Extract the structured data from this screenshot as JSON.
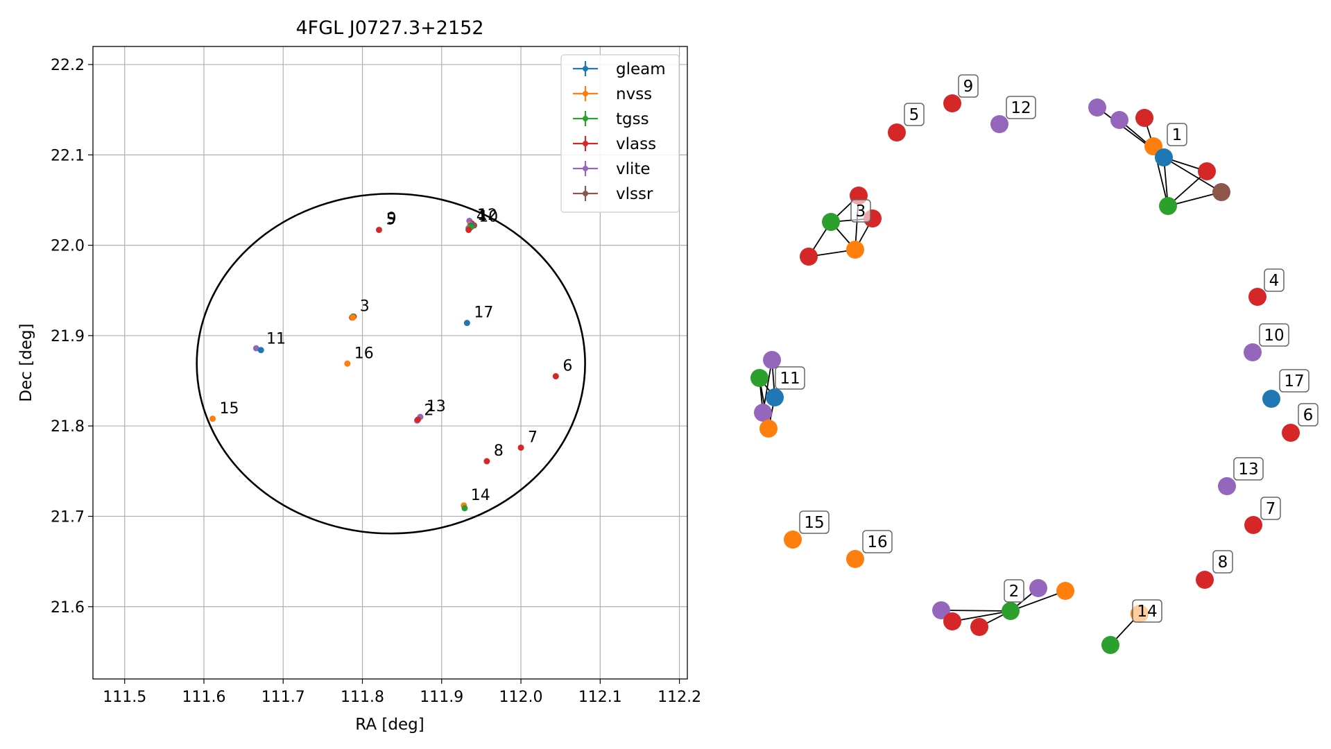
{
  "colors": {
    "gleam": "#1f77b4",
    "nvss": "#ff7f0e",
    "tgss": "#2ca02c",
    "vlass": "#d62728",
    "vlite": "#9467bd",
    "vlssr": "#8c564b"
  },
  "chart_data": [
    {
      "type": "scatter",
      "title": "4FGL J0727.3+2152",
      "xlabel": "RA [deg]",
      "ylabel": "Dec [deg]",
      "xlim": [
        111.46,
        112.21
      ],
      "ylim": [
        21.52,
        22.22
      ],
      "x_ticks": [
        111.5,
        111.6,
        111.7,
        111.8,
        111.9,
        112.0,
        112.1,
        112.2
      ],
      "y_ticks": [
        21.6,
        21.7,
        21.8,
        21.9,
        22.0,
        22.1,
        22.2
      ],
      "grid": true,
      "legend": {
        "placement": "top-right",
        "entries": [
          "gleam",
          "nvss",
          "tgss",
          "vlass",
          "vlite",
          "vlssr"
        ]
      },
      "ellipse": {
        "center": [
          111.836,
          21.869
        ],
        "ra_semi_axis": 0.245,
        "dec_semi_axis": 0.188
      },
      "points": [
        {
          "survey": "vlite",
          "ra": 111.935,
          "dec": 22.027
        },
        {
          "survey": "vlass",
          "ra": 111.938,
          "dec": 22.024
        },
        {
          "survey": "vlssr",
          "ra": 111.941,
          "dec": 22.022
        },
        {
          "survey": "vlite",
          "ra": 111.934,
          "dec": 22.019
        },
        {
          "survey": "vlite",
          "ra": 111.936,
          "dec": 22.021
        },
        {
          "survey": "nvss",
          "ra": 111.936,
          "dec": 22.023
        },
        {
          "survey": "gleam",
          "ra": 111.937,
          "dec": 22.022
        },
        {
          "survey": "tgss",
          "ra": 111.937,
          "dec": 22.02
        },
        {
          "survey": "vlass",
          "ra": 111.934,
          "dec": 22.017
        },
        {
          "survey": "vlass",
          "ra": 111.821,
          "dec": 22.017
        },
        {
          "survey": "vlass",
          "ra": 111.787,
          "dec": 21.92
        },
        {
          "survey": "vlass",
          "ra": 111.789,
          "dec": 21.921
        },
        {
          "survey": "tgss",
          "ra": 111.788,
          "dec": 21.921
        },
        {
          "survey": "nvss",
          "ra": 111.788,
          "dec": 21.92
        },
        {
          "survey": "gleam",
          "ra": 111.932,
          "dec": 21.914
        },
        {
          "survey": "vlite",
          "ra": 111.666,
          "dec": 21.886
        },
        {
          "survey": "gleam",
          "ra": 111.672,
          "dec": 21.884
        },
        {
          "survey": "nvss",
          "ra": 111.781,
          "dec": 21.869
        },
        {
          "survey": "vlass",
          "ra": 112.044,
          "dec": 21.855
        },
        {
          "survey": "nvss",
          "ra": 111.611,
          "dec": 21.808
        },
        {
          "survey": "vlite",
          "ra": 111.873,
          "dec": 21.81
        },
        {
          "survey": "vlite",
          "ra": 111.869,
          "dec": 21.806
        },
        {
          "survey": "vlass",
          "ra": 111.87,
          "dec": 21.807
        },
        {
          "survey": "vlass",
          "ra": 112.0,
          "dec": 21.776
        },
        {
          "survey": "vlass",
          "ra": 111.957,
          "dec": 21.761
        },
        {
          "survey": "nvss",
          "ra": 111.928,
          "dec": 21.712
        },
        {
          "survey": "tgss",
          "ra": 111.929,
          "dec": 21.709
        }
      ],
      "annotations": [
        {
          "text": "5",
          "ra": 111.821,
          "dec": 22.017
        },
        {
          "text": "9",
          "ra": 111.822,
          "dec": 22.018
        },
        {
          "text": "1",
          "ra": 111.936,
          "dec": 22.022
        },
        {
          "text": "4",
          "ra": 111.935,
          "dec": 22.021
        },
        {
          "text": "12",
          "ra": 111.937,
          "dec": 22.022
        },
        {
          "text": "10",
          "ra": 111.938,
          "dec": 22.02
        },
        {
          "text": "3",
          "ra": 111.788,
          "dec": 21.921
        },
        {
          "text": "17",
          "ra": 111.932,
          "dec": 21.914
        },
        {
          "text": "11",
          "ra": 111.67,
          "dec": 21.885
        },
        {
          "text": "16",
          "ra": 111.781,
          "dec": 21.869
        },
        {
          "text": "6",
          "ra": 112.044,
          "dec": 21.855
        },
        {
          "text": "15",
          "ra": 111.611,
          "dec": 21.808
        },
        {
          "text": "2",
          "ra": 111.869,
          "dec": 21.806
        },
        {
          "text": "13",
          "ra": 111.872,
          "dec": 21.81
        },
        {
          "text": "7",
          "ra": 112.0,
          "dec": 21.776
        },
        {
          "text": "8",
          "ra": 111.957,
          "dec": 21.761
        },
        {
          "text": "14",
          "ra": 111.928,
          "dec": 21.712
        }
      ]
    },
    {
      "type": "network",
      "groups": [
        {
          "label": "1",
          "nodes": [
            "vlite",
            "vlite",
            "vlass",
            "nvss",
            "gleam",
            "vlass",
            "tgss",
            "vlssr"
          ]
        },
        {
          "label": "3",
          "nodes": [
            "vlass",
            "tgss",
            "vlass",
            "nvss",
            "vlass"
          ]
        },
        {
          "label": "11",
          "nodes": [
            "vlite",
            "tgss",
            "gleam",
            "vlite",
            "nvss"
          ]
        },
        {
          "label": "2",
          "nodes": [
            "vlite",
            "vlass",
            "vlass",
            "tgss",
            "vlite",
            "nvss"
          ]
        },
        {
          "label": "14",
          "nodes": [
            "tgss",
            "nvss"
          ]
        },
        {
          "label": "5",
          "nodes": [
            "vlass"
          ]
        },
        {
          "label": "9",
          "nodes": [
            "vlass"
          ]
        },
        {
          "label": "12",
          "nodes": [
            "vlite"
          ]
        },
        {
          "label": "4",
          "nodes": [
            "vlass"
          ]
        },
        {
          "label": "10",
          "nodes": [
            "vlite"
          ]
        },
        {
          "label": "17",
          "nodes": [
            "gleam"
          ]
        },
        {
          "label": "6",
          "nodes": [
            "vlass"
          ]
        },
        {
          "label": "13",
          "nodes": [
            "vlite"
          ]
        },
        {
          "label": "7",
          "nodes": [
            "vlass"
          ]
        },
        {
          "label": "8",
          "nodes": [
            "vlass"
          ]
        },
        {
          "label": "15",
          "nodes": [
            "nvss"
          ]
        },
        {
          "label": "16",
          "nodes": [
            "nvss"
          ]
        }
      ]
    }
  ]
}
